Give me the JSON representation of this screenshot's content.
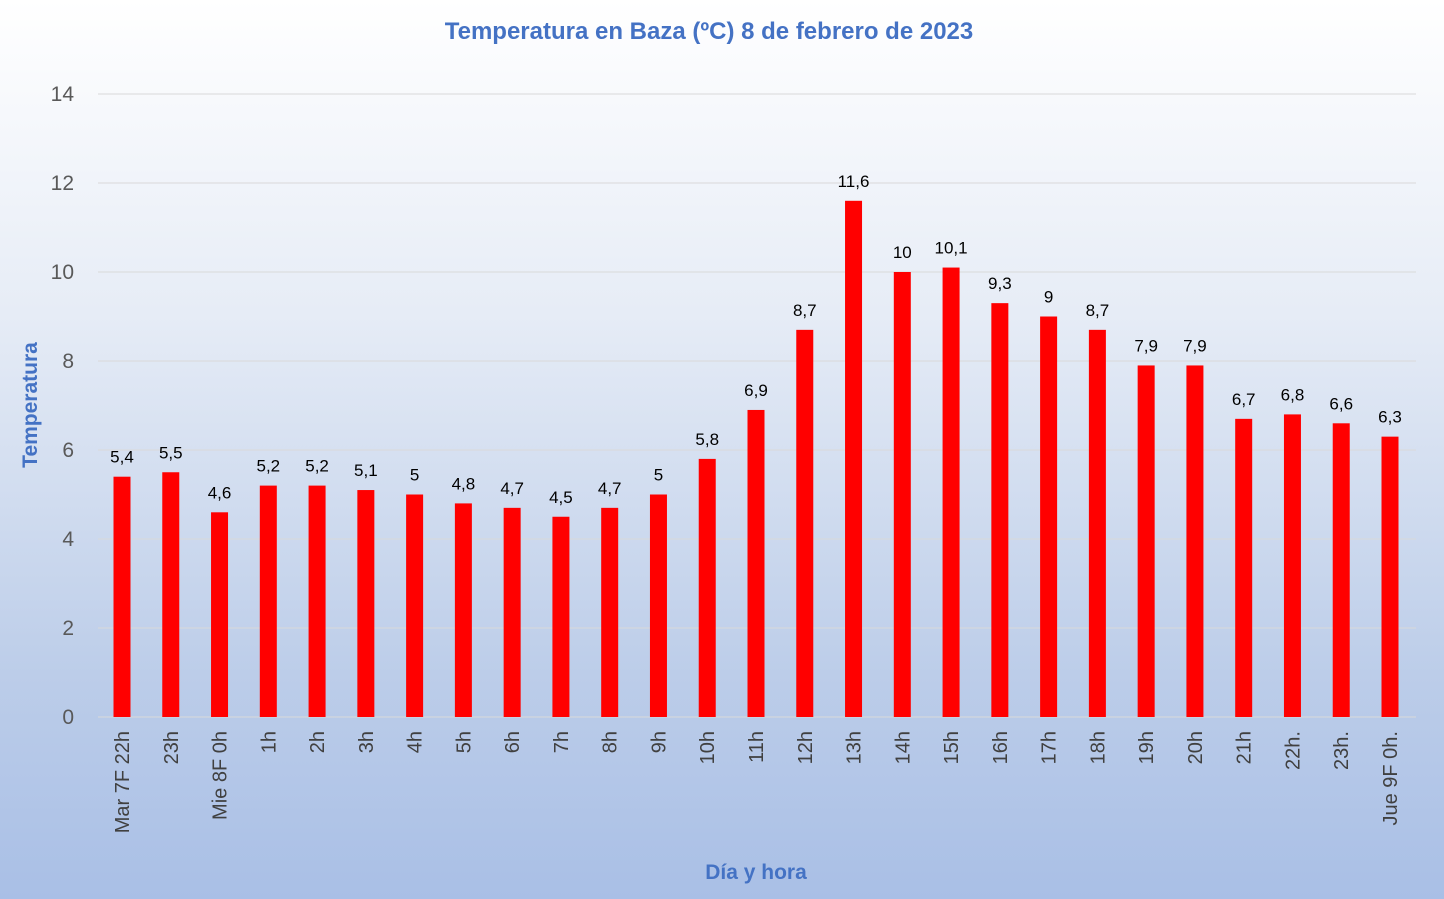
{
  "chart_data": {
    "type": "bar",
    "title": "Temperatura en Baza (ºC) 8 de febrero de 2023",
    "xlabel": "Día y hora",
    "ylabel": "Temperatura",
    "ylim": [
      0,
      14
    ],
    "yticks": [
      0,
      2,
      4,
      6,
      8,
      10,
      12,
      14
    ],
    "grid": true,
    "legend": "none",
    "categories": [
      "Mar 7F 22h",
      "23h",
      "Mie 8F 0h",
      "1h",
      "2h",
      "3h",
      "4h",
      "5h",
      "6h",
      "7h",
      "8h",
      "9h",
      "10h",
      "11h",
      "12h",
      "13h",
      "14h",
      "15h",
      "16h",
      "17h",
      "18h",
      "19h",
      "20h",
      "21h",
      "22h.",
      "23h.",
      "Jue 9F 0h."
    ],
    "values": [
      5.4,
      5.5,
      4.6,
      5.2,
      5.2,
      5.1,
      5,
      4.8,
      4.7,
      4.5,
      4.7,
      5,
      5.8,
      6.9,
      8.7,
      11.6,
      10,
      10.1,
      9.3,
      9,
      8.7,
      7.9,
      7.9,
      6.7,
      6.8,
      6.6,
      6.3
    ],
    "data_labels": [
      "5,4",
      "5,5",
      "4,6",
      "5,2",
      "5,2",
      "5,1",
      "5",
      "4,8",
      "4,7",
      "4,5",
      "4,7",
      "5",
      "5,8",
      "6,9",
      "8,7",
      "11,6",
      "10",
      "10,1",
      "9,3",
      "9",
      "8,7",
      "7,9",
      "7,9",
      "6,7",
      "6,8",
      "6,6",
      "6,3"
    ],
    "colors": {
      "bar": "#ff0000",
      "title": "#4472c4",
      "axis_title": "#4472c4",
      "gridline": "#d9d9d9"
    }
  }
}
